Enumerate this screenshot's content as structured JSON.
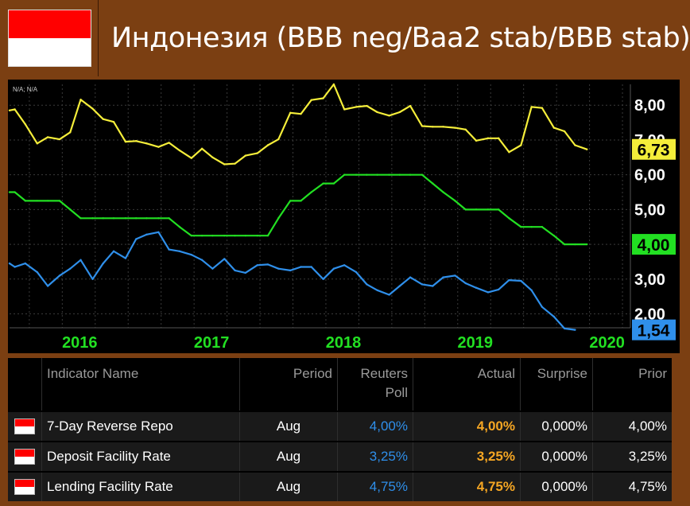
{
  "header": {
    "title": "Индонезия (BBB neg/Baa2 stab/BBB stab)",
    "flag_colors": [
      "#ff0000",
      "#ffffff"
    ]
  },
  "chart_data": {
    "type": "line",
    "corner_label": "N/A; N/A",
    "x_tick_labels": [
      {
        "label": "2016",
        "t": 2016.0
      },
      {
        "label": "2017",
        "t": 2017.0
      },
      {
        "label": "2018",
        "t": 2018.0
      },
      {
        "label": "2019",
        "t": 2019.0
      },
      {
        "label": "2020",
        "t": 2020.0
      }
    ],
    "ylim": [
      1.6,
      8.6
    ],
    "y_ticks": [
      "8,00",
      "7,00",
      "6,00",
      "5,00",
      "4,00",
      "3,00",
      "2,00"
    ],
    "y_tick_values": [
      8,
      7,
      6,
      5,
      4,
      3,
      2
    ],
    "series": [
      {
        "color": "#f5ee3a",
        "end_label": "6,73",
        "points": [
          [
            2015.6,
            7.85
          ],
          [
            2015.64,
            7.88
          ],
          [
            2015.72,
            7.45
          ],
          [
            2015.81,
            6.9
          ],
          [
            2015.89,
            7.08
          ],
          [
            2015.98,
            7.02
          ],
          [
            2016.06,
            7.22
          ],
          [
            2016.14,
            8.16
          ],
          [
            2016.23,
            7.9
          ],
          [
            2016.31,
            7.6
          ],
          [
            2016.39,
            7.52
          ],
          [
            2016.48,
            6.95
          ],
          [
            2016.56,
            6.97
          ],
          [
            2016.64,
            6.9
          ],
          [
            2016.73,
            6.8
          ],
          [
            2016.81,
            6.92
          ],
          [
            2016.89,
            6.7
          ],
          [
            2016.98,
            6.48
          ],
          [
            2017.06,
            6.75
          ],
          [
            2017.14,
            6.5
          ],
          [
            2017.23,
            6.3
          ],
          [
            2017.31,
            6.32
          ],
          [
            2017.39,
            6.55
          ],
          [
            2017.48,
            6.62
          ],
          [
            2017.56,
            6.85
          ],
          [
            2017.64,
            7.02
          ],
          [
            2017.73,
            7.78
          ],
          [
            2017.81,
            7.75
          ],
          [
            2017.89,
            8.15
          ],
          [
            2017.98,
            8.2
          ],
          [
            2018.06,
            8.6
          ],
          [
            2018.14,
            7.88
          ],
          [
            2018.23,
            7.95
          ],
          [
            2018.31,
            7.98
          ],
          [
            2018.39,
            7.8
          ],
          [
            2018.48,
            7.7
          ],
          [
            2018.56,
            7.8
          ],
          [
            2018.64,
            7.98
          ],
          [
            2018.73,
            7.4
          ],
          [
            2018.81,
            7.38
          ],
          [
            2018.89,
            7.38
          ],
          [
            2018.98,
            7.35
          ],
          [
            2019.06,
            7.3
          ],
          [
            2019.14,
            6.98
          ],
          [
            2019.23,
            7.05
          ],
          [
            2019.31,
            7.05
          ],
          [
            2019.39,
            6.65
          ],
          [
            2019.48,
            6.85
          ],
          [
            2019.56,
            7.95
          ],
          [
            2019.64,
            7.92
          ],
          [
            2019.73,
            7.35
          ],
          [
            2019.81,
            7.25
          ],
          [
            2019.89,
            6.85
          ],
          [
            2019.98,
            6.73
          ]
        ]
      },
      {
        "color": "#22e022",
        "end_label": "4,00",
        "points": [
          [
            2015.6,
            5.5
          ],
          [
            2015.64,
            5.5
          ],
          [
            2015.72,
            5.25
          ],
          [
            2015.81,
            5.25
          ],
          [
            2015.89,
            5.25
          ],
          [
            2015.98,
            5.25
          ],
          [
            2016.06,
            5.0
          ],
          [
            2016.14,
            4.75
          ],
          [
            2016.23,
            4.75
          ],
          [
            2016.31,
            4.75
          ],
          [
            2016.39,
            4.75
          ],
          [
            2016.48,
            4.75
          ],
          [
            2016.56,
            4.75
          ],
          [
            2016.64,
            4.75
          ],
          [
            2016.73,
            4.75
          ],
          [
            2016.81,
            4.75
          ],
          [
            2016.89,
            4.5
          ],
          [
            2016.98,
            4.25
          ],
          [
            2017.06,
            4.25
          ],
          [
            2017.14,
            4.25
          ],
          [
            2017.23,
            4.25
          ],
          [
            2017.31,
            4.25
          ],
          [
            2017.39,
            4.25
          ],
          [
            2017.48,
            4.25
          ],
          [
            2017.56,
            4.25
          ],
          [
            2017.64,
            4.75
          ],
          [
            2017.73,
            5.25
          ],
          [
            2017.81,
            5.25
          ],
          [
            2017.89,
            5.5
          ],
          [
            2017.98,
            5.75
          ],
          [
            2018.06,
            5.75
          ],
          [
            2018.14,
            6.0
          ],
          [
            2018.23,
            6.0
          ],
          [
            2018.31,
            6.0
          ],
          [
            2018.39,
            6.0
          ],
          [
            2018.48,
            6.0
          ],
          [
            2018.56,
            6.0
          ],
          [
            2018.64,
            6.0
          ],
          [
            2018.73,
            6.0
          ],
          [
            2018.81,
            5.75
          ],
          [
            2018.89,
            5.5
          ],
          [
            2018.98,
            5.25
          ],
          [
            2019.06,
            5.0
          ],
          [
            2019.14,
            5.0
          ],
          [
            2019.23,
            5.0
          ],
          [
            2019.31,
            5.0
          ],
          [
            2019.39,
            4.75
          ],
          [
            2019.48,
            4.5
          ],
          [
            2019.56,
            4.5
          ],
          [
            2019.64,
            4.5
          ],
          [
            2019.73,
            4.25
          ],
          [
            2019.81,
            4.0
          ],
          [
            2019.89,
            4.0
          ],
          [
            2019.98,
            4.0
          ]
        ]
      },
      {
        "color": "#2f8fea",
        "end_label": "1,54",
        "points": [
          [
            2015.6,
            3.45
          ],
          [
            2015.64,
            3.35
          ],
          [
            2015.72,
            3.45
          ],
          [
            2015.81,
            3.2
          ],
          [
            2015.89,
            2.8
          ],
          [
            2015.98,
            3.1
          ],
          [
            2016.06,
            3.3
          ],
          [
            2016.14,
            3.55
          ],
          [
            2016.23,
            3.0
          ],
          [
            2016.31,
            3.45
          ],
          [
            2016.39,
            3.8
          ],
          [
            2016.48,
            3.6
          ],
          [
            2016.56,
            4.15
          ],
          [
            2016.64,
            4.28
          ],
          [
            2016.73,
            4.35
          ],
          [
            2016.81,
            3.85
          ],
          [
            2016.89,
            3.8
          ],
          [
            2016.98,
            3.7
          ],
          [
            2017.06,
            3.55
          ],
          [
            2017.14,
            3.3
          ],
          [
            2017.23,
            3.58
          ],
          [
            2017.31,
            3.25
          ],
          [
            2017.39,
            3.18
          ],
          [
            2017.48,
            3.4
          ],
          [
            2017.56,
            3.42
          ],
          [
            2017.64,
            3.3
          ],
          [
            2017.73,
            3.25
          ],
          [
            2017.81,
            3.35
          ],
          [
            2017.89,
            3.35
          ],
          [
            2017.98,
            3.0
          ],
          [
            2018.06,
            3.3
          ],
          [
            2018.14,
            3.4
          ],
          [
            2018.23,
            3.2
          ],
          [
            2018.31,
            2.85
          ],
          [
            2018.39,
            2.68
          ],
          [
            2018.48,
            2.55
          ],
          [
            2018.56,
            2.8
          ],
          [
            2018.64,
            3.05
          ],
          [
            2018.73,
            2.85
          ],
          [
            2018.81,
            2.8
          ],
          [
            2018.89,
            3.05
          ],
          [
            2018.98,
            3.1
          ],
          [
            2019.06,
            2.88
          ],
          [
            2019.14,
            2.75
          ],
          [
            2019.23,
            2.62
          ],
          [
            2019.31,
            2.7
          ],
          [
            2019.39,
            2.97
          ],
          [
            2019.48,
            2.95
          ],
          [
            2019.56,
            2.68
          ],
          [
            2019.64,
            2.2
          ],
          [
            2019.73,
            1.92
          ],
          [
            2019.81,
            1.58
          ],
          [
            2019.89,
            1.54
          ]
        ]
      }
    ]
  },
  "table": {
    "headers": [
      "Indicator Name",
      "Period",
      "Reuters Poll",
      "Actual",
      "Surprise",
      "Prior"
    ],
    "rows": [
      {
        "name": "7-Day Reverse Repo",
        "period": "Aug",
        "poll": "4,00%",
        "actual": "4,00%",
        "surprise": "0,000%",
        "prior": "4,00%"
      },
      {
        "name": "Deposit Facility Rate",
        "period": "Aug",
        "poll": "3,25%",
        "actual": "3,25%",
        "surprise": "0,000%",
        "prior": "3,25%"
      },
      {
        "name": "Lending Facility Rate",
        "period": "Aug",
        "poll": "4,75%",
        "actual": "4,75%",
        "surprise": "0,000%",
        "prior": "4,75%"
      }
    ]
  }
}
